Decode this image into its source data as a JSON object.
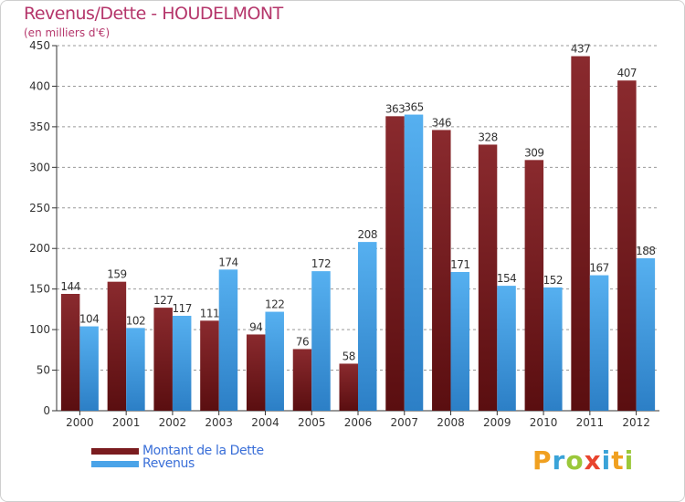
{
  "title": "Revenus/Dette - HOUDELMONT",
  "subtitle": "(en milliers d'€)",
  "colors": {
    "title": "#b5366b",
    "dette": "#7a1c1f",
    "revenus": "#4aa3e8",
    "legend_text": "#3a6fd8",
    "grid": "#999999"
  },
  "chart_data": {
    "type": "bar",
    "title": "Revenus/Dette - HOUDELMONT",
    "ylabel": "(en milliers d'€)",
    "xlabel": "",
    "ylim": [
      0,
      450
    ],
    "yticks": [
      0,
      50,
      100,
      150,
      200,
      250,
      300,
      350,
      400,
      450
    ],
    "categories": [
      "2000",
      "2001",
      "2002",
      "2003",
      "2004",
      "2005",
      "2006",
      "2007",
      "2008",
      "2009",
      "2010",
      "2011",
      "2012"
    ],
    "series": [
      {
        "name": "Montant de la Dette",
        "values": [
          144,
          159,
          127,
          111,
          94,
          76,
          58,
          363,
          346,
          328,
          309,
          437,
          407
        ]
      },
      {
        "name": "Revenus",
        "values": [
          104,
          102,
          117,
          174,
          122,
          172,
          208,
          365,
          171,
          154,
          152,
          167,
          188
        ]
      }
    ],
    "grid": "horizontal-dashed",
    "legend_position": "bottom-left"
  },
  "legend": {
    "items": [
      {
        "label": "Montant de la Dette"
      },
      {
        "label": "Revenus"
      }
    ]
  },
  "logo": {
    "letters": [
      "P",
      "r",
      "o",
      "x",
      "i",
      "t",
      "i"
    ],
    "colors": [
      "#f0a020",
      "#3aa3d8",
      "#9bc83a",
      "#e8442e",
      "#3aa3d8",
      "#f0a020",
      "#9bc83a"
    ]
  }
}
